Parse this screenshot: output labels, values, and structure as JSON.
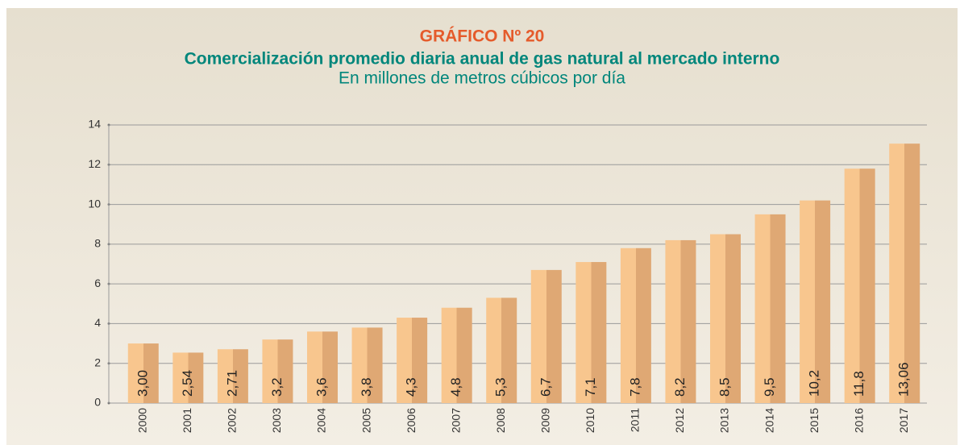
{
  "chart_data": {
    "type": "bar",
    "title": "GRÁFICO Nº 20",
    "subtitle": "Comercialización promedio diaria anual de gas natural al mercado interno",
    "y_axis_label": "En millones de metros cúbicos por día",
    "categories": [
      "2000",
      "2001",
      "2002",
      "2003",
      "2004",
      "2005",
      "2006",
      "2007",
      "2008",
      "2009",
      "2010",
      "2011",
      "2012",
      "2013",
      "2014",
      "2015",
      "2016",
      "2017"
    ],
    "values": [
      3.0,
      2.54,
      2.71,
      3.2,
      3.6,
      3.8,
      4.3,
      4.8,
      5.3,
      6.7,
      7.1,
      7.8,
      8.2,
      8.5,
      9.5,
      10.2,
      11.8,
      13.06
    ],
    "value_labels": [
      "3,00",
      "2,54",
      "2,71",
      "3,2",
      "3,6",
      "3,8",
      "4,3",
      "4,8",
      "5,3",
      "6,7",
      "7,1",
      "7,8",
      "8,2",
      "8,5",
      "9,5",
      "10,2",
      "11,8",
      "13,06"
    ],
    "color": "#f5bd84",
    "ylim": [
      0,
      14
    ],
    "yticks": [
      0,
      2,
      4,
      6,
      8,
      10,
      12,
      14
    ],
    "grid": true
  }
}
